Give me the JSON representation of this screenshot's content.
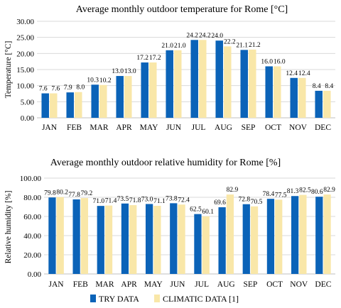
{
  "chart_data": [
    {
      "type": "bar",
      "title": "Average monthly outdoor temperature for Rome [°C]",
      "ylabel": "Temperature [°C]",
      "xlabel": "",
      "ylim": [
        0,
        30
      ],
      "yticks": [
        "0.00",
        "5.00",
        "10.00",
        "15.00",
        "20.00",
        "25.00",
        "30.00"
      ],
      "grid": true,
      "categories": [
        "JAN",
        "FEB",
        "MAR",
        "APR",
        "MAY",
        "JUN",
        "JUL",
        "AUG",
        "SEP",
        "OCT",
        "NOV",
        "DEC"
      ],
      "series": [
        {
          "name": "TRY DATA",
          "color": "#0b63b8",
          "values": [
            7.6,
            7.9,
            10.3,
            13.0,
            17.2,
            21.0,
            24.2,
            24.0,
            21.1,
            16.0,
            12.4,
            8.4
          ],
          "labels": [
            "7.6",
            "7.9",
            "10.3",
            "13.0",
            "17.2",
            "21.0",
            "24.2",
            "24.0",
            "21.1",
            "16.0",
            "12.4",
            "8.4"
          ]
        },
        {
          "name": "CLIMATIC DATA [1]",
          "color": "#f9e7a8",
          "values": [
            7.6,
            8.0,
            10.2,
            13.0,
            17.2,
            21.0,
            24.2,
            22.2,
            21.2,
            16.0,
            12.4,
            8.4
          ],
          "labels": [
            "7.6",
            "8.0",
            "10.2",
            "13.0",
            "17.2",
            "21.0",
            "24.2",
            "22.2",
            "21.2",
            "16.0",
            "12.4",
            "8.4"
          ]
        }
      ]
    },
    {
      "type": "bar",
      "title": "Average monthly outdoor relative humidity for Rome [%]",
      "ylabel": "Relative humidity [%]",
      "xlabel": "",
      "ylim": [
        0,
        100
      ],
      "yticks": [
        "0.00",
        "20.00",
        "40.00",
        "60.00",
        "80.00",
        "100.00"
      ],
      "grid": true,
      "categories": [
        "JAN",
        "FEB",
        "MAR",
        "APR",
        "MAY",
        "JUN",
        "JUL",
        "AUG",
        "SEP",
        "OCT",
        "NOV",
        "DEC"
      ],
      "series": [
        {
          "name": "TRY DATA",
          "color": "#0b63b8",
          "values": [
            79.8,
            77.8,
            71.0,
            73.5,
            73.0,
            73.8,
            62.5,
            69.6,
            72.8,
            78.4,
            81.3,
            80.6
          ],
          "labels": [
            "79.8",
            "77.8",
            "71.0",
            "73.5",
            "73.0",
            "73.8",
            "62.5",
            "69.6",
            "72.8",
            "78.4",
            "81.3",
            "80.6"
          ]
        },
        {
          "name": "CLIMATIC DATA [1]",
          "color": "#f9e7a8",
          "values": [
            80.2,
            79.2,
            71.4,
            71.8,
            71.1,
            72.4,
            60.1,
            82.9,
            70.5,
            77.5,
            82.5,
            82.9
          ],
          "labels": [
            "80.2",
            "79.2",
            "71.4",
            "71.8",
            "71.1",
            "72.4",
            "60.1",
            "82.9",
            "70.5",
            "77.5",
            "82.5",
            "82.9"
          ]
        }
      ],
      "legend": {
        "position": "bottom",
        "items": [
          {
            "label": "TRY DATA",
            "color": "#0b63b8"
          },
          {
            "label": "CLIMATIC DATA [1]",
            "color": "#f9e7a8"
          }
        ]
      }
    }
  ]
}
